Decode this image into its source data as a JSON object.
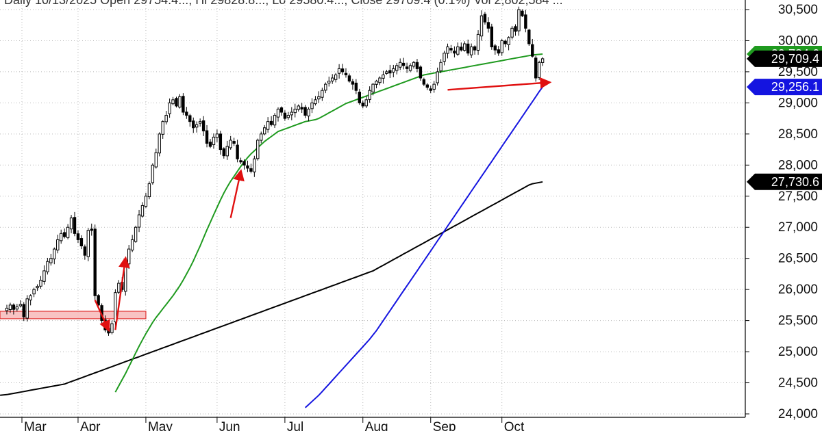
{
  "header": {
    "text": "Daily 10/13/2025 Open 29754.4..., Hi 29828.8..., Lo 29580.4..., Close 29709.4 (0.1%) Vol 2,802,584 ..."
  },
  "colors": {
    "candle_up_fill": "#ffffff",
    "candle_down_fill": "#000000",
    "ma_short": "#1f9a1f",
    "ma_medium": "#1414e0",
    "ma_long": "#000000",
    "price_badge": "#000000",
    "annotation": "#e01010",
    "support_zone_fill": "#f7b8b8",
    "support_zone_stroke": "#e03030"
  },
  "chart_data": {
    "type": "candlestick",
    "title": "",
    "xlabel": "",
    "ylabel": "",
    "ylim": [
      23950,
      30650
    ],
    "y_ticks": [
      24000,
      24500,
      25000,
      25500,
      26000,
      26500,
      27000,
      27500,
      28000,
      28500,
      29000,
      29500,
      30000,
      30500
    ],
    "y_tick_labels": [
      "24,000",
      "24,500",
      "25,000",
      "25,500",
      "26,000",
      "26,500",
      "27,000",
      "27,500",
      "28,000",
      "28,500",
      "29,000",
      "29,500",
      "30,000",
      "30,500"
    ],
    "months": [
      {
        "label": "Mar",
        "start_index": 0
      },
      {
        "label": "Apr",
        "start_index": 21
      },
      {
        "label": "May",
        "start_index": 41
      },
      {
        "label": "Jun",
        "start_index": 62
      },
      {
        "label": "Jul",
        "start_index": 82
      },
      {
        "label": "Aug",
        "start_index": 105
      },
      {
        "label": "Sep",
        "start_index": 125
      },
      {
        "label": "Oct",
        "start_index": 146
      }
    ],
    "grid": true,
    "close": [
      25700,
      25750,
      25680,
      25720,
      25760,
      25560,
      25850,
      25900,
      26000,
      26050,
      26150,
      26300,
      26450,
      26500,
      26650,
      26800,
      26900,
      26850,
      27000,
      27150,
      26900,
      26800,
      26700,
      26550,
      26950,
      26950,
      25900,
      25750,
      25500,
      25350,
      25300,
      25450,
      25950,
      26100,
      26000,
      26400,
      26650,
      26800,
      27000,
      27200,
      27350,
      27500,
      27700,
      28000,
      28200,
      28500,
      28700,
      28800,
      29000,
      29050,
      28950,
      29100,
      28850,
      28800,
      28700,
      28600,
      28650,
      28700,
      28550,
      28350,
      28300,
      28450,
      28500,
      28250,
      28150,
      28300,
      28400,
      28350,
      28100,
      28050,
      28000,
      27950,
      27900,
      28100,
      28400,
      28500,
      28600,
      28700,
      28650,
      28800,
      28900,
      28850,
      28750,
      28800,
      28850,
      28900,
      28950,
      28900,
      28800,
      28900,
      29000,
      29050,
      29100,
      29200,
      29300,
      29350,
      29400,
      29450,
      29550,
      29500,
      29450,
      29350,
      29300,
      29200,
      29000,
      28950,
      29050,
      29200,
      29300,
      29350,
      29400,
      29450,
      29500,
      29480,
      29550,
      29600,
      29650,
      29600,
      29550,
      29600,
      29650,
      29550,
      29400,
      29300,
      29250,
      29200,
      29300,
      29500,
      29650,
      29800,
      29900,
      29850,
      29800,
      29900,
      29850,
      29950,
      29800,
      29900,
      29850,
      30100,
      30400,
      30300,
      30200,
      29900,
      29850,
      29800,
      30000,
      29950,
      30050,
      30200,
      30150,
      30500,
      30400,
      30200,
      29950,
      29750,
      29400,
      29650,
      29709.4
    ],
    "sma20": [
      24350,
      24450,
      24550,
      24650,
      24760,
      24870,
      24980,
      25090,
      25190,
      25290,
      25380,
      25470,
      25550,
      25620,
      25690,
      25760,
      25830,
      25900,
      25980,
      26060,
      26150,
      26250,
      26350,
      26460,
      26580,
      26700,
      26830,
      26960,
      27080,
      27200,
      27320,
      27440,
      27550,
      27650,
      27740,
      27820,
      27900,
      27980,
      28050,
      28120,
      28180,
      28230,
      28280,
      28330,
      28380,
      28420,
      28460,
      28500,
      28540,
      28560,
      28580,
      28600,
      28620,
      28640,
      28660,
      28680,
      28700,
      28710,
      28720,
      28730,
      28750,
      28780,
      28810,
      28840,
      28870,
      28900,
      28930,
      28960,
      28990,
      29010,
      29030,
      29050,
      29070,
      29090,
      29110,
      29130,
      29150,
      29170,
      29190,
      29210,
      29230,
      29250,
      29270,
      29290,
      29310,
      29330,
      29350,
      29370,
      29390,
      29410,
      29430,
      29450,
      29460,
      29470,
      29480,
      29490,
      29500,
      29510,
      29520,
      29530,
      29540,
      29550,
      29560,
      29570,
      29580,
      29590,
      29600,
      29610,
      29620,
      29630,
      29640,
      29650,
      29660,
      29670,
      29680,
      29690,
      29700,
      29710,
      29720,
      29730,
      29740,
      29750,
      29760,
      29770,
      29775,
      29780,
      29784.6
    ],
    "sma50": [
      24100,
      24150,
      24200,
      24250,
      24300,
      24360,
      24420,
      24480,
      24540,
      24600,
      24660,
      24720,
      24780,
      24840,
      24900,
      24960,
      25020,
      25080,
      25140,
      25200,
      25270,
      25340,
      25420,
      25500,
      25580,
      25660,
      25740,
      25820,
      25900,
      25980,
      26060,
      26140,
      26220,
      26300,
      26380,
      26460,
      26540,
      26620,
      26700,
      26780,
      26860,
      26940,
      27020,
      27100,
      27180,
      27260,
      27340,
      27420,
      27500,
      27580,
      27660,
      27740,
      27820,
      27900,
      27980,
      28060,
      28140,
      28220,
      28300,
      28380,
      28460,
      28540,
      28620,
      28700,
      28780,
      28860,
      28940,
      29020,
      29100,
      29180,
      29256.1
    ],
    "sma200": [
      24300,
      24305,
      24310,
      24320,
      24330,
      24340,
      24350,
      24360,
      24370,
      24380,
      24390,
      24400,
      24410,
      24420,
      24430,
      24440,
      24450,
      24460,
      24470,
      24480,
      24500,
      24520,
      24540,
      24560,
      24580,
      24600,
      24620,
      24640,
      24660,
      24680,
      24700,
      24720,
      24740,
      24760,
      24780,
      24800,
      24820,
      24840,
      24860,
      24880,
      24900,
      24920,
      24940,
      24960,
      24980,
      25000,
      25020,
      25040,
      25060,
      25080,
      25100,
      25120,
      25140,
      25160,
      25180,
      25200,
      25220,
      25240,
      25260,
      25280,
      25300,
      25320,
      25340,
      25360,
      25380,
      25400,
      25420,
      25440,
      25460,
      25480,
      25500,
      25520,
      25540,
      25560,
      25580,
      25600,
      25620,
      25640,
      25660,
      25680,
      25700,
      25720,
      25740,
      25760,
      25780,
      25800,
      25820,
      25840,
      25860,
      25880,
      25900,
      25920,
      25940,
      25960,
      25980,
      26000,
      26020,
      26040,
      26060,
      26080,
      26100,
      26120,
      26140,
      26160,
      26180,
      26200,
      26220,
      26240,
      26260,
      26280,
      26300,
      26330,
      26360,
      26390,
      26420,
      26450,
      26480,
      26510,
      26540,
      26570,
      26600,
      26630,
      26660,
      26690,
      26720,
      26750,
      26780,
      26810,
      26840,
      26870,
      26900,
      26930,
      26960,
      26990,
      27020,
      27050,
      27080,
      27110,
      27140,
      27170,
      27200,
      27230,
      27260,
      27290,
      27320,
      27350,
      27380,
      27410,
      27440,
      27470,
      27500,
      27530,
      27560,
      27590,
      27620,
      27650,
      27680,
      27700,
      27710,
      27720,
      27730.6
    ],
    "last_values": {
      "sma20": {
        "value": 29784.6,
        "label": "29,784.6"
      },
      "price": {
        "value": 29709.4,
        "label": "29,709.4"
      },
      "sma50": {
        "value": 29256.1,
        "label": "29,256.1"
      },
      "sma200": {
        "value": 27730.6,
        "label": "27,730.6"
      }
    },
    "annotations": {
      "support_zone": {
        "from_index": 0,
        "to_index": 41,
        "y_low": 25530,
        "y_high": 25650
      },
      "arrows": [
        {
          "from": [
            26,
            25830
          ],
          "to": [
            30,
            25350
          ]
        },
        {
          "from": [
            32,
            25350
          ],
          "to": [
            35,
            26500
          ]
        },
        {
          "from": [
            66,
            27150
          ],
          "to": [
            69,
            27900
          ]
        },
        {
          "from": [
            130,
            29210
          ],
          "to": [
            160,
            29330
          ]
        }
      ]
    }
  }
}
